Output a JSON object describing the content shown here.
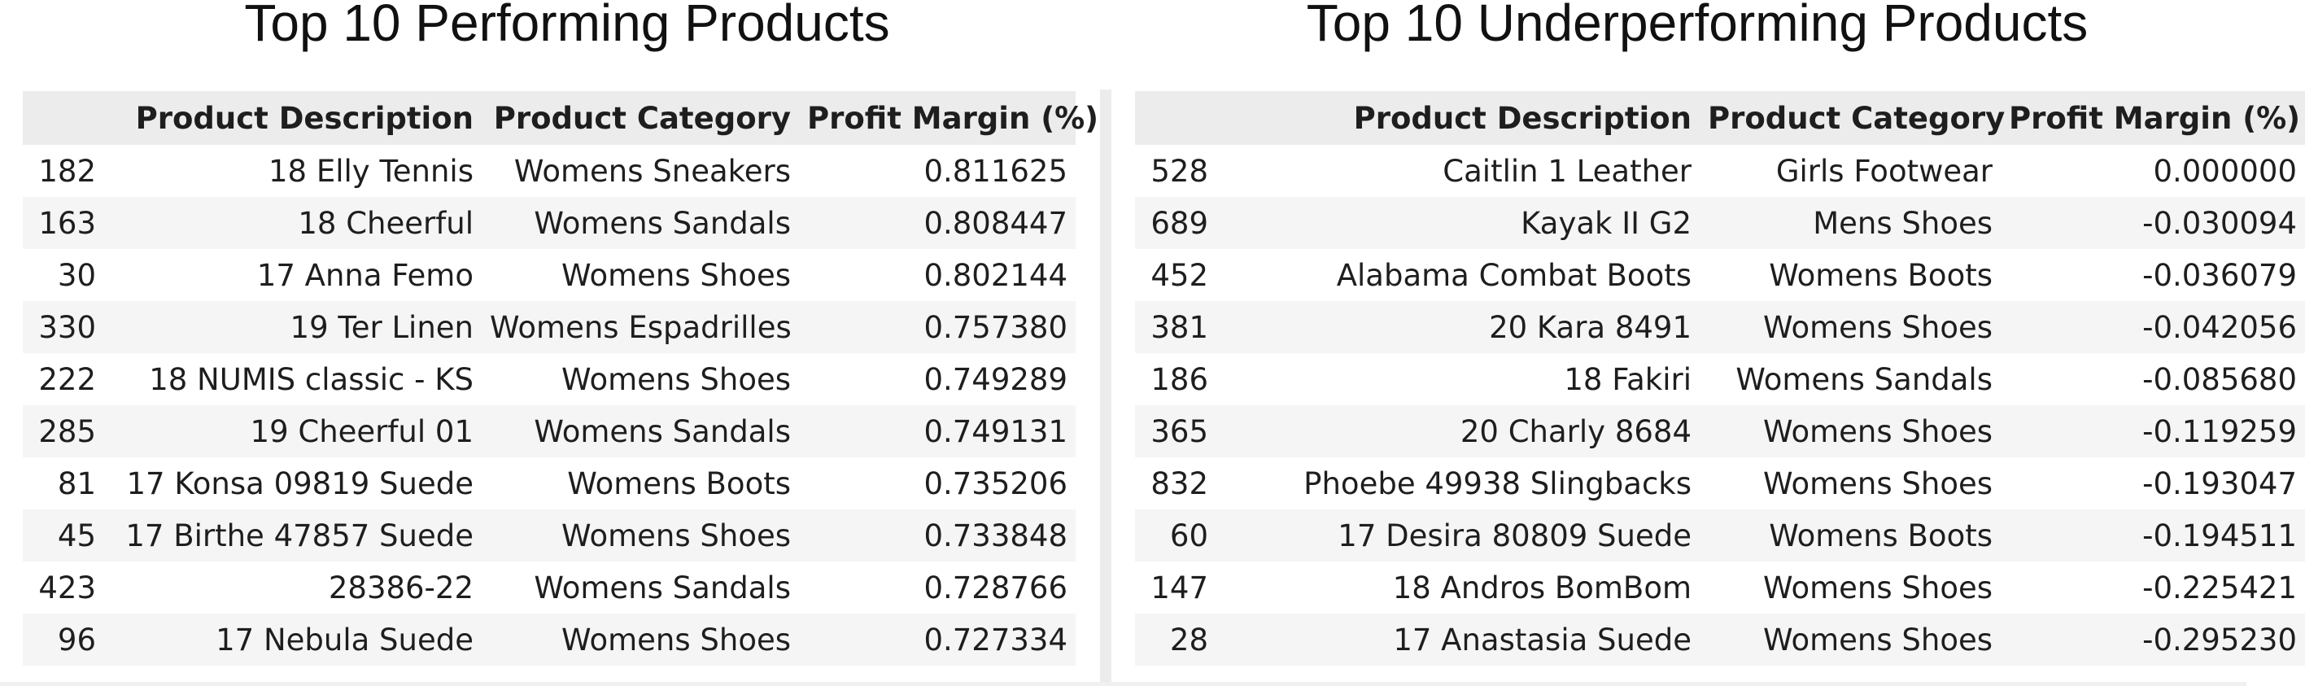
{
  "left_panel": {
    "title": "Top 10 Performing Products",
    "columns": [
      "",
      "Product Description",
      "Product Category",
      "Profit Margin (%)"
    ],
    "rows": [
      [
        "182",
        "18 Elly Tennis",
        "Womens Sneakers",
        "0.811625"
      ],
      [
        "163",
        "18 Cheerful",
        "Womens Sandals",
        "0.808447"
      ],
      [
        "30",
        "17 Anna Femo",
        "Womens Shoes",
        "0.802144"
      ],
      [
        "330",
        "19 Ter Linen",
        "Womens Espadrilles",
        "0.757380"
      ],
      [
        "222",
        "18 NUMIS classic - KS",
        "Womens Shoes",
        "0.749289"
      ],
      [
        "285",
        "19 Cheerful 01",
        "Womens Sandals",
        "0.749131"
      ],
      [
        "81",
        "17 Konsa 09819 Suede",
        "Womens Boots",
        "0.735206"
      ],
      [
        "45",
        "17 Birthe 47857 Suede",
        "Womens Shoes",
        "0.733848"
      ],
      [
        "423",
        "28386-22",
        "Womens Sandals",
        "0.728766"
      ],
      [
        "96",
        "17 Nebula Suede",
        "Womens Shoes",
        "0.727334"
      ]
    ]
  },
  "right_panel": {
    "title": "Top 10 Underperforming Products",
    "columns": [
      "",
      "Product Description",
      "Product Category",
      "Profit Margin (%)"
    ],
    "rows": [
      [
        "528",
        "Caitlin 1 Leather",
        "Girls Footwear",
        "0.000000"
      ],
      [
        "689",
        "Kayak II G2",
        "Mens Shoes",
        "-0.030094"
      ],
      [
        "452",
        "Alabama Combat Boots",
        "Womens Boots",
        "-0.036079"
      ],
      [
        "381",
        "20 Kara 8491",
        "Womens Shoes",
        "-0.042056"
      ],
      [
        "186",
        "18 Fakiri",
        "Womens Sandals",
        "-0.085680"
      ],
      [
        "365",
        "20 Charly 8684",
        "Womens Shoes",
        "-0.119259"
      ],
      [
        "832",
        "Phoebe 49938 Slingbacks",
        "Womens Shoes",
        "-0.193047"
      ],
      [
        "60",
        "17 Desira 80809 Suede",
        "Womens Boots",
        "-0.194511"
      ],
      [
        "147",
        "18 Andros BomBom",
        "Womens Shoes",
        "-0.225421"
      ],
      [
        "28",
        "17 Anastasia Suede",
        "Womens Shoes",
        "-0.295230"
      ]
    ]
  },
  "colors": {
    "header_bg": "#ececec",
    "stripe_bg": "#f5f5f5",
    "text": "#1e1e1e"
  }
}
